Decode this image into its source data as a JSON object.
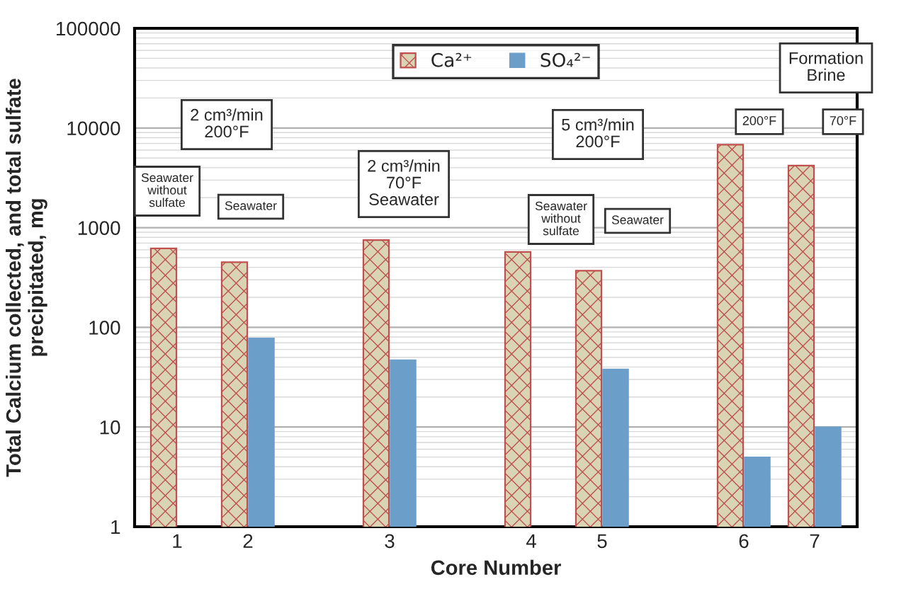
{
  "chart_data": {
    "type": "bar",
    "xlabel": "Core Number",
    "ylabel": "Total Calcium collected, and total sulfate\nprecipitated, mg",
    "categories": [
      "1",
      "2",
      null,
      "3",
      null,
      "4",
      "5",
      null,
      "6",
      "7"
    ],
    "series": [
      {
        "name": "Ca²⁺",
        "color": "#c0504d",
        "values": [
          620,
          450,
          null,
          750,
          null,
          570,
          370,
          null,
          6800,
          4200
        ]
      },
      {
        "name": "SO₄²⁻",
        "color": "#6b9fca",
        "values": [
          null,
          78,
          null,
          47,
          null,
          null,
          38,
          null,
          5,
          10
        ]
      }
    ],
    "log": true,
    "ylim": [
      1,
      100000
    ],
    "yticks": [
      1,
      10,
      100,
      1000,
      10000,
      100000
    ],
    "grid": "y",
    "legend": "top",
    "annotations": [
      "2 cm³/min\n200°F",
      "Seawater\nwithout\nsulfate",
      "Seawater",
      "2 cm³/min\n70°F\nSeawater",
      "5 cm³/min\n200°F",
      "Seawater\nwithout\nsulfate",
      "Seawater",
      "Formation\nBrine",
      "200°F",
      "70°F"
    ]
  }
}
